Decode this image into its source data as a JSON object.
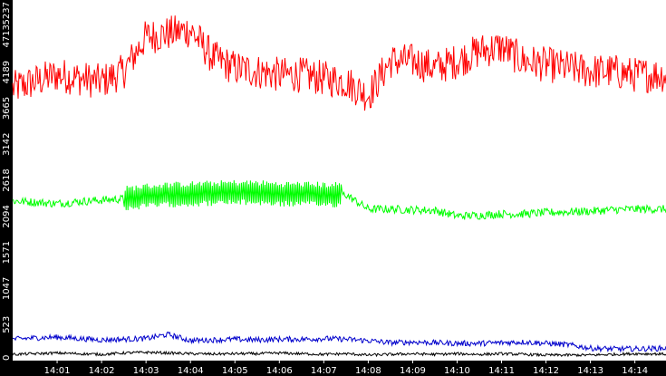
{
  "chart_data": {
    "type": "line",
    "title": "",
    "xlabel": "",
    "ylabel": "",
    "x_range_minutes": [
      0,
      14.7
    ],
    "ylim": [
      0,
      5237
    ],
    "y_ticks": [
      "0",
      "523",
      "1047",
      "1571",
      "2094",
      "2618",
      "3142",
      "3665",
      "4189",
      "4713",
      "5237"
    ],
    "x_ticks": [
      "14:01",
      "14:02",
      "14:03",
      "14:04",
      "14:05",
      "14:06",
      "14:07",
      "14:08",
      "14:09",
      "14:10",
      "14:11",
      "14:12",
      "14:13",
      "14:14"
    ],
    "grid": false,
    "colors": {
      "background": "#000000",
      "plot_area": "#ffffff",
      "axis_text": "#ffffff"
    },
    "series": [
      {
        "color": "#ff0000",
        "x": [
          0.0,
          0.5,
          1.0,
          1.5,
          2.0,
          2.5,
          3.0,
          3.5,
          4.0,
          4.5,
          5.0,
          5.5,
          6.0,
          6.5,
          7.0,
          7.5,
          8.0,
          8.5,
          9.0,
          9.5,
          10.0,
          10.5,
          11.0,
          11.5,
          12.0,
          12.5,
          13.0,
          13.5,
          14.0,
          14.7
        ],
        "y": [
          3950,
          4050,
          4150,
          4100,
          4050,
          4200,
          4700,
          4750,
          4800,
          4400,
          4250,
          4200,
          4150,
          4150,
          4100,
          4050,
          3850,
          4350,
          4350,
          4250,
          4350,
          4500,
          4550,
          4350,
          4300,
          4250,
          4200,
          4200,
          4150,
          4150
        ]
      },
      {
        "color": "#00ff00",
        "x": [
          0.0,
          0.5,
          1.0,
          1.5,
          2.0,
          2.5,
          3.0,
          3.5,
          4.0,
          4.5,
          5.0,
          5.5,
          6.0,
          6.5,
          7.0,
          7.5,
          8.0,
          8.5,
          9.0,
          9.5,
          10.0,
          10.5,
          11.0,
          11.5,
          12.0,
          12.5,
          13.0,
          13.5,
          14.0,
          14.7
        ],
        "y": [
          2320,
          2300,
          2280,
          2310,
          2330,
          2350,
          2390,
          2410,
          2420,
          2430,
          2440,
          2440,
          2420,
          2420,
          2410,
          2410,
          2200,
          2200,
          2190,
          2180,
          2100,
          2110,
          2130,
          2130,
          2150,
          2160,
          2170,
          2190,
          2200,
          2200
        ]
      },
      {
        "color": "#0000cc",
        "x": [
          0.0,
          0.5,
          1.0,
          1.5,
          2.0,
          2.5,
          3.0,
          3.5,
          4.0,
          4.5,
          5.0,
          5.5,
          6.0,
          6.5,
          7.0,
          7.5,
          8.0,
          8.5,
          9.0,
          9.5,
          10.0,
          10.5,
          11.0,
          11.5,
          12.0,
          12.5,
          13.0,
          13.5,
          14.0,
          14.7
        ],
        "y": [
          310,
          330,
          340,
          320,
          300,
          310,
          320,
          380,
          290,
          300,
          310,
          300,
          310,
          310,
          320,
          310,
          290,
          260,
          270,
          260,
          250,
          250,
          260,
          270,
          250,
          230,
          180,
          170,
          170,
          180
        ]
      },
      {
        "color": "#000000",
        "x": [
          0.0,
          0.5,
          1.0,
          1.5,
          2.0,
          2.5,
          3.0,
          3.5,
          4.0,
          4.5,
          5.0,
          5.5,
          6.0,
          6.5,
          7.0,
          7.5,
          8.0,
          8.5,
          9.0,
          9.5,
          10.0,
          10.5,
          11.0,
          11.5,
          12.0,
          12.5,
          13.0,
          13.5,
          14.0,
          14.7
        ],
        "y": [
          90,
          100,
          110,
          100,
          90,
          110,
          120,
          110,
          100,
          95,
          100,
          100,
          110,
          100,
          90,
          100,
          80,
          90,
          100,
          90,
          100,
          90,
          100,
          90,
          80,
          80,
          80,
          90,
          100,
          95
        ]
      }
    ]
  }
}
